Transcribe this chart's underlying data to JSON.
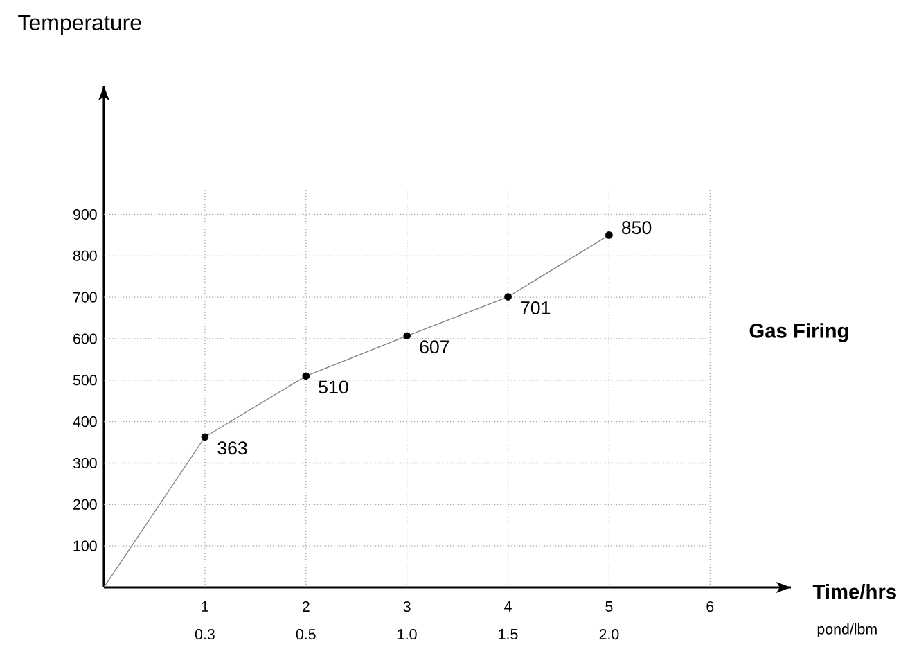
{
  "chart_data": {
    "type": "line",
    "ylabel": "Temperature",
    "xlabel": "Time/hrs",
    "x2label": "pond/lbm",
    "annotations": [
      "Gas Firing",
      "0.3",
      "0.5",
      "1.0",
      "1.5",
      "2.0"
    ],
    "x": [
      0,
      1,
      2,
      3,
      4,
      5
    ],
    "series": [
      {
        "color": "#000000",
        "values": [
          0,
          363,
          510,
          607,
          701,
          850
        ],
        "value_labels": [
          null,
          "363",
          "510",
          "607",
          "701",
          "850"
        ]
      }
    ],
    "xlim": [
      0,
      6.8
    ],
    "xticks": [
      1,
      2,
      3,
      4,
      5,
      6
    ],
    "ylim": [
      0,
      1210
    ],
    "yticks": [
      100,
      200,
      300,
      400,
      500,
      600,
      700,
      800,
      900
    ],
    "grid": true,
    "marker": "circle",
    "line_style": "solid"
  }
}
